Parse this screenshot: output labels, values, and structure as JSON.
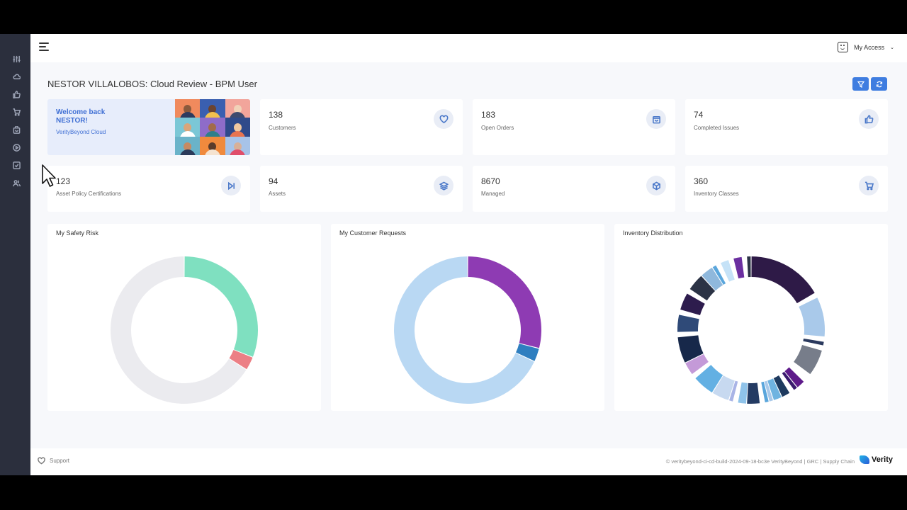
{
  "topbar": {
    "access_label": "My Access"
  },
  "page": {
    "title": "NESTOR VILLALOBOS: Cloud Review - BPM User"
  },
  "welcome": {
    "line1": "Welcome back",
    "line2": "NESTOR!",
    "subtitle": "VerityBeyond Cloud"
  },
  "stats": [
    {
      "value": "138",
      "label": "Customers",
      "icon": "heart-icon"
    },
    {
      "value": "183",
      "label": "Open Orders",
      "icon": "shopping-bag-icon"
    },
    {
      "value": "74",
      "label": "Completed Issues",
      "icon": "thumbs-up-icon"
    },
    {
      "value": "123",
      "label": "Asset Policy Certifications",
      "icon": "skip-forward-icon"
    },
    {
      "value": "94",
      "label": "Assets",
      "icon": "layers-icon"
    },
    {
      "value": "8670",
      "label": "Managed",
      "icon": "box-icon"
    },
    {
      "value": "360",
      "label": "Inventory Classes",
      "icon": "cart-icon"
    }
  ],
  "chart_data": [
    {
      "type": "pie",
      "title": "My Safety Risk",
      "donut": true,
      "values": [
        31,
        3,
        66
      ],
      "colors": [
        "#7fe0c0",
        "#ec7f85",
        "#ebebef"
      ]
    },
    {
      "type": "pie",
      "title": "My Customer Requests",
      "donut": true,
      "values": [
        29,
        3,
        68
      ],
      "colors": [
        "#8e3bb3",
        "#2f7fc0",
        "#b9d8f3"
      ]
    },
    {
      "type": "pie",
      "title": "Inventory Distribution",
      "donut": true,
      "values": [
        17,
        1,
        9,
        1,
        1,
        1,
        6,
        2,
        2,
        1,
        1,
        2,
        2,
        1,
        1,
        1,
        3,
        2,
        1,
        1,
        4,
        5,
        1,
        3,
        6,
        1,
        4,
        1,
        4,
        1,
        4,
        3,
        1,
        1,
        2,
        1,
        2,
        1,
        1
      ],
      "colors": [
        "#2e1a47",
        "#ffffff",
        "#a9c9ea",
        "#ffffff",
        "#2b3a5e",
        "#ffffff",
        "#777d8a",
        "#ffffff",
        "#5e1a8a",
        "#3a1a6e",
        "#ffffff",
        "#1e3a5f",
        "#6fb3e0",
        "#a9c9ea",
        "#5aa6dc",
        "#ffffff",
        "#243b63",
        "#8fc3ea",
        "#ffffff",
        "#a9b4e6",
        "#c7d9f0",
        "#63b0e3",
        "#ffffff",
        "#c49ad8",
        "#17284a",
        "#ffffff",
        "#2f4a78",
        "#ffffff",
        "#2d1c4d",
        "#ffffff",
        "#2b3345",
        "#8fb8dc",
        "#5aa6dc",
        "#ffffff",
        "#c5e2f7",
        "#ffffff",
        "#6b2fa0",
        "#ffffff",
        "#2b3345"
      ]
    }
  ],
  "footer": {
    "support_label": "Support",
    "copyright": "© veritybeyond-ci-cd-build-2024-09-18-bc3e VerityBeyond | GRC | Supply Chain",
    "logo_text": "Verity"
  }
}
